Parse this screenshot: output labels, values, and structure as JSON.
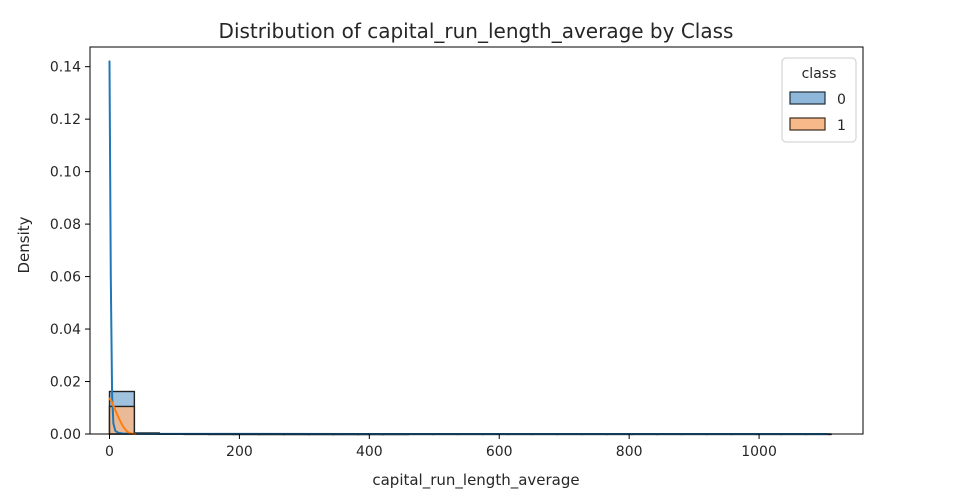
{
  "chart_data": {
    "type": "histogram",
    "title": "Distribution of capital_run_length_average by Class",
    "xlabel": "capital_run_length_average",
    "ylabel": "Density",
    "xlim": [
      -30,
      1160
    ],
    "ylim": [
      0,
      0.1475
    ],
    "x_ticks": [
      0,
      200,
      400,
      600,
      800,
      1000
    ],
    "x_tick_labels": [
      "0",
      "200",
      "400",
      "600",
      "800",
      "1000"
    ],
    "y_ticks": [
      0.0,
      0.02,
      0.04,
      0.06,
      0.08,
      0.1,
      0.12,
      0.14
    ],
    "y_tick_labels": [
      "0.00",
      "0.02",
      "0.04",
      "0.06",
      "0.08",
      "0.10",
      "0.12",
      "0.14"
    ],
    "grid": false,
    "legend": {
      "title": "class",
      "placement": "top-right",
      "entries": [
        {
          "label": "0",
          "fill": "#8fb7d9",
          "edge": "#1f2d3a"
        },
        {
          "label": "1",
          "fill": "#f7b98a",
          "edge": "#3a2b1e"
        }
      ]
    },
    "bins": {
      "start": 0,
      "width": 38.3,
      "count": 29
    },
    "series": [
      {
        "name": "0",
        "color": "#1f77b4",
        "fill": "#8fb7d9",
        "hist": [
          0.0162,
          0.0004,
          0.0001,
          5e-05,
          3e-05,
          2e-05,
          2e-05,
          1e-05,
          1e-05,
          1e-05,
          1e-05,
          1e-05,
          1e-05,
          1e-05,
          1e-05,
          1e-05,
          1e-05,
          1e-05,
          1e-05,
          1e-05,
          1e-05,
          1e-05,
          1e-05,
          1e-05,
          1e-05,
          1e-05,
          1e-05,
          1e-05,
          1e-05
        ],
        "kde": {
          "x": [
            0,
            2,
            4,
            6,
            9,
            13,
            20,
            35,
            100,
            400,
            800,
            1105
          ],
          "y": [
            0.142,
            0.06,
            0.015,
            0.004,
            0.0012,
            0.0005,
            0.0002,
            0.0001,
            5e-05,
            2e-05,
            1e-05,
            1e-05
          ]
        }
      },
      {
        "name": "1",
        "color": "#ff7f0e",
        "fill": "#f7b98a",
        "hist": [
          0.0105,
          0.0003,
          0.0001,
          5e-05,
          3e-05,
          2e-05,
          1e-05,
          1e-05,
          1e-05,
          1e-05,
          1e-05,
          1e-05,
          0.0,
          0.0,
          0.0,
          0.0,
          0.0,
          0.0,
          0.0,
          0.0,
          0.0,
          0.0,
          0.0,
          0.0,
          0.0,
          0.0,
          0.0,
          0.0,
          0.0
        ],
        "kde": {
          "x": [
            0,
            3,
            6,
            10,
            14,
            18,
            22,
            26,
            30,
            35,
            40
          ],
          "y": [
            0.0135,
            0.0125,
            0.0108,
            0.0085,
            0.0062,
            0.0042,
            0.0025,
            0.0012,
            0.0005,
            0.0001,
            0.0
          ]
        }
      }
    ]
  }
}
